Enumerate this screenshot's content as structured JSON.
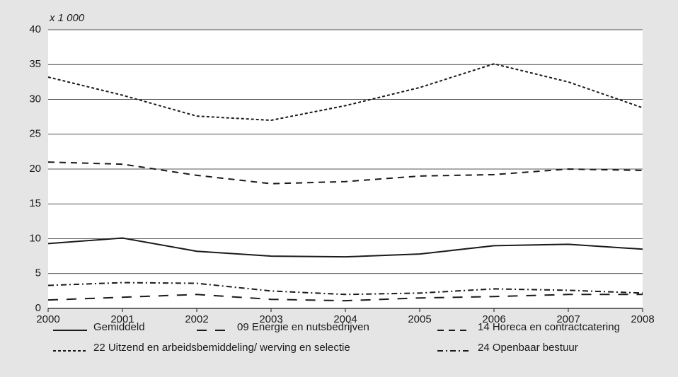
{
  "chart_data": {
    "type": "line",
    "y_unit_label": "x 1 000",
    "x": [
      2000,
      2001,
      2002,
      2003,
      2004,
      2005,
      2006,
      2007,
      2008
    ],
    "xlim": [
      2000,
      2008
    ],
    "xticks": [
      2000,
      2001,
      2002,
      2003,
      2004,
      2005,
      2006,
      2007,
      2008
    ],
    "ylim": [
      0,
      40
    ],
    "yticks": [
      0,
      5,
      10,
      15,
      20,
      25,
      30,
      35,
      40
    ],
    "grid": true,
    "series": [
      {
        "name": "Gemiddeld",
        "color": "#1a1a1a",
        "values": [
          9.3,
          10.1,
          8.2,
          7.5,
          7.4,
          7.8,
          9.0,
          9.2,
          8.5
        ]
      },
      {
        "name": "09 Energie en nutsbedrijven",
        "color": "#1a1a1a",
        "values": [
          1.2,
          1.6,
          2.0,
          1.3,
          1.1,
          1.5,
          1.7,
          2.0,
          2.0
        ]
      },
      {
        "name": "14 Horeca en contractcatering",
        "color": "#1a1a1a",
        "values": [
          21.0,
          20.7,
          19.1,
          17.9,
          18.2,
          19.0,
          19.2,
          20.0,
          19.8
        ]
      },
      {
        "name": "22 Uitzend en arbeidsbemiddeling/ werving en selectie",
        "color": "#1a1a1a",
        "values": [
          33.2,
          30.6,
          27.6,
          27.0,
          29.1,
          31.7,
          35.1,
          32.5,
          28.8
        ]
      },
      {
        "name": "24 Openbaar bestuur",
        "color": "#1a1a1a",
        "values": [
          3.3,
          3.7,
          3.6,
          2.5,
          2.0,
          2.2,
          2.8,
          2.6,
          2.2
        ]
      }
    ]
  }
}
